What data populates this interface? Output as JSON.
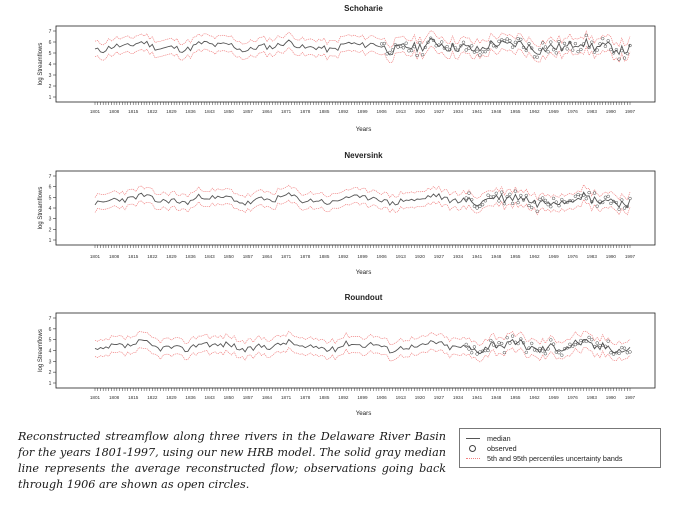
{
  "chart_data": [
    {
      "type": "line",
      "title": "Schoharie",
      "xlabel": "Years",
      "ylabel": "log Streamflows",
      "xlim": [
        1801,
        1997
      ],
      "ylim": [
        1,
        7
      ],
      "yticks": [
        1,
        2,
        3,
        4,
        5,
        6,
        7
      ],
      "xticks": [
        1801,
        1808,
        1815,
        1822,
        1829,
        1836,
        1843,
        1850,
        1857,
        1864,
        1871,
        1878,
        1885,
        1892,
        1899,
        1906,
        1913,
        1920,
        1927,
        1934,
        1941,
        1948,
        1955,
        1962,
        1969,
        1976,
        1983,
        1990,
        1997
      ],
      "median_level": 5.6,
      "band_half_width": 0.7,
      "observed_start": 1906
    },
    {
      "type": "line",
      "title": "Neversink",
      "xlabel": "Years",
      "ylabel": "log Streamflows",
      "xlim": [
        1801,
        1997
      ],
      "ylim": [
        1,
        7
      ],
      "yticks": [
        1,
        2,
        3,
        4,
        5,
        6,
        7
      ],
      "xticks": [
        1801,
        1808,
        1815,
        1822,
        1829,
        1836,
        1843,
        1850,
        1857,
        1864,
        1871,
        1878,
        1885,
        1892,
        1899,
        1906,
        1913,
        1920,
        1927,
        1934,
        1941,
        1948,
        1955,
        1962,
        1969,
        1976,
        1983,
        1990,
        1997
      ],
      "median_level": 4.8,
      "band_half_width": 0.7,
      "observed_start": 1937
    },
    {
      "type": "line",
      "title": "Roundout",
      "xlabel": "Years",
      "ylabel": "log Streamflows",
      "xlim": [
        1801,
        1997
      ],
      "ylim": [
        1,
        7
      ],
      "yticks": [
        1,
        2,
        3,
        4,
        5,
        6,
        7
      ],
      "xticks": [
        1801,
        1808,
        1815,
        1822,
        1829,
        1836,
        1843,
        1850,
        1857,
        1864,
        1871,
        1878,
        1885,
        1892,
        1899,
        1906,
        1913,
        1920,
        1927,
        1934,
        1941,
        1948,
        1955,
        1962,
        1969,
        1976,
        1983,
        1990,
        1997
      ],
      "median_level": 4.4,
      "band_half_width": 0.75,
      "observed_start": 1937
    }
  ],
  "legend": {
    "entries": [
      "median",
      "observed",
      "5th and 95th percentiles uncertainty bands"
    ]
  },
  "caption": "Reconstructed streamflow along three rivers in the Delaware River Basin for the years 1801-1997, using our new HRB model. The solid gray median line represents the average reconstructed flow; observations going back through 1906 are shown as open circles.",
  "colors": {
    "median": "#555555",
    "band": "#f08080",
    "observed": "#444444",
    "axis": "#222222"
  }
}
